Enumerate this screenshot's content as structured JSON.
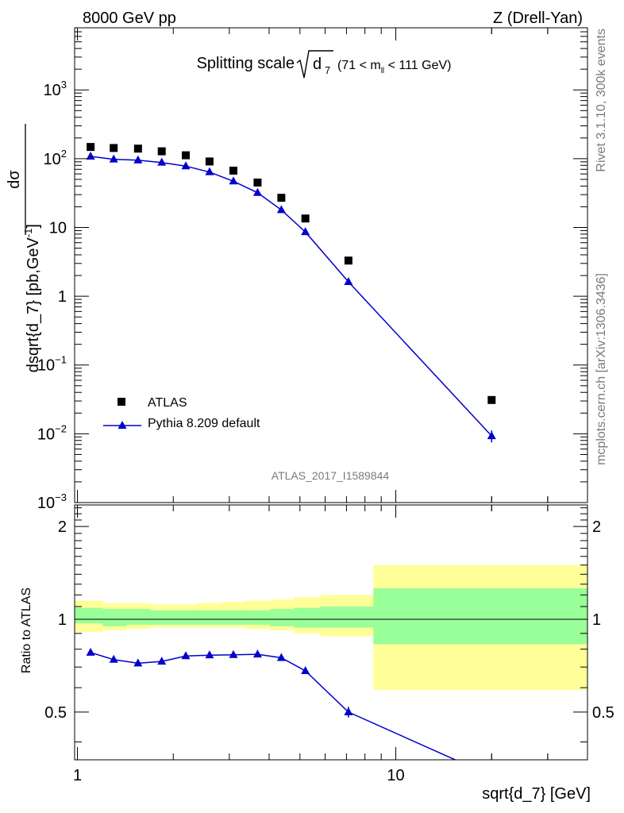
{
  "header": {
    "left": "8000 GeV pp",
    "right": "Z (Drell-Yan)"
  },
  "side_labels": {
    "top": "Rivet 3.1.10,  300k events",
    "bottom": "mcplots.cern.ch [arXiv:1306.3436]"
  },
  "watermark": "ATLAS_2017_I1589844",
  "chart_data": [
    {
      "type": "scatter",
      "title_main": "Splitting scale",
      "title_sqrt_symbol": "d",
      "title_sqrt_sub": "7",
      "title_range_pre": "(71 < m",
      "title_range_sub": "ll",
      "title_range_post": " < 111 GeV)",
      "y_label": "dσ / dsqrt{d_7} [pb,GeV⁻¹]",
      "y_label_num": "dσ",
      "y_label_den": "dsqrt{d_7} [pb,GeV",
      "y_label_sup": "-1",
      "y_label_end": "]",
      "y_scale": "log",
      "ylim": [
        0.001,
        8000
      ],
      "xlim": [
        0.98,
        40
      ],
      "x_scale": "log",
      "y_ticks": [
        {
          "value": 0.001,
          "base": "10",
          "exp": "−3"
        },
        {
          "value": 0.01,
          "base": "10",
          "exp": "−2"
        },
        {
          "value": 0.1,
          "base": "10",
          "exp": "−1"
        },
        {
          "value": 1,
          "base": "1",
          "exp": ""
        },
        {
          "value": 10,
          "base": "10",
          "exp": ""
        },
        {
          "value": 100,
          "base": "10",
          "exp": "2"
        },
        {
          "value": 1000,
          "base": "10",
          "exp": "3"
        }
      ],
      "legend": {
        "position": "bottom-left",
        "entries": [
          "ATLAS",
          "Pythia 8.209 default"
        ]
      },
      "series": [
        {
          "name": "ATLAS",
          "marker": "square",
          "color": "#000000",
          "x": [
            1.1,
            1.3,
            1.55,
            1.84,
            2.19,
            2.6,
            3.09,
            3.68,
            4.37,
            5.2,
            7.1,
            20.0
          ],
          "y": [
            148,
            143,
            140,
            128,
            112,
            91,
            67,
            45,
            27,
            13.5,
            3.3,
            0.031
          ]
        },
        {
          "name": "Pythia 8.209 default",
          "marker": "triangle",
          "color": "#0000cc",
          "x": [
            1.1,
            1.3,
            1.55,
            1.84,
            2.19,
            2.6,
            3.09,
            3.68,
            4.37,
            5.2,
            7.1,
            20.0
          ],
          "y": [
            108,
            98,
            95,
            88,
            78,
            64,
            47,
            32,
            18,
            8.6,
            1.62,
            0.0093
          ]
        }
      ]
    },
    {
      "type": "line",
      "y_label": "Ratio to ATLAS",
      "x_label": "sqrt{d_7} [GeV]",
      "x_scale": "log",
      "xlim": [
        0.98,
        40
      ],
      "ylim": [
        0.35,
        2.35
      ],
      "y_ticks": [
        0.5,
        1,
        2
      ],
      "x_ticks": [
        1,
        10
      ],
      "reference_line": 1,
      "bands": {
        "edges": [
          0.98,
          1.2,
          1.42,
          1.69,
          2.0,
          2.38,
          2.84,
          3.38,
          4.02,
          4.78,
          5.8,
          8.5,
          40
        ],
        "outer_colour": "#ffff99",
        "inner_colour": "#99ff99",
        "outer_low": [
          0.91,
          0.92,
          0.93,
          0.94,
          0.94,
          0.94,
          0.94,
          0.93,
          0.92,
          0.9,
          0.88,
          0.59
        ],
        "outer_high": [
          1.15,
          1.13,
          1.13,
          1.12,
          1.12,
          1.13,
          1.14,
          1.15,
          1.16,
          1.18,
          1.2,
          1.5
        ],
        "inner_low": [
          0.97,
          0.95,
          0.96,
          0.96,
          0.96,
          0.96,
          0.96,
          0.96,
          0.95,
          0.94,
          0.94,
          0.83
        ],
        "inner_high": [
          1.09,
          1.08,
          1.08,
          1.07,
          1.07,
          1.07,
          1.07,
          1.07,
          1.08,
          1.09,
          1.1,
          1.26
        ]
      },
      "series": [
        {
          "name": "Pythia 8.209 default",
          "color": "#0000cc",
          "x": [
            1.1,
            1.3,
            1.55,
            1.84,
            2.19,
            2.6,
            3.09,
            3.68,
            4.37,
            5.2,
            7.1,
            20.0
          ],
          "y": [
            0.78,
            0.74,
            0.72,
            0.73,
            0.76,
            0.765,
            0.767,
            0.77,
            0.75,
            0.68,
            0.5,
            0.31
          ],
          "err": [
            0.01,
            0.01,
            0.01,
            0.01,
            0.01,
            0.01,
            0.01,
            0.01,
            0.01,
            0.015,
            0.02,
            0.03
          ]
        }
      ]
    }
  ]
}
